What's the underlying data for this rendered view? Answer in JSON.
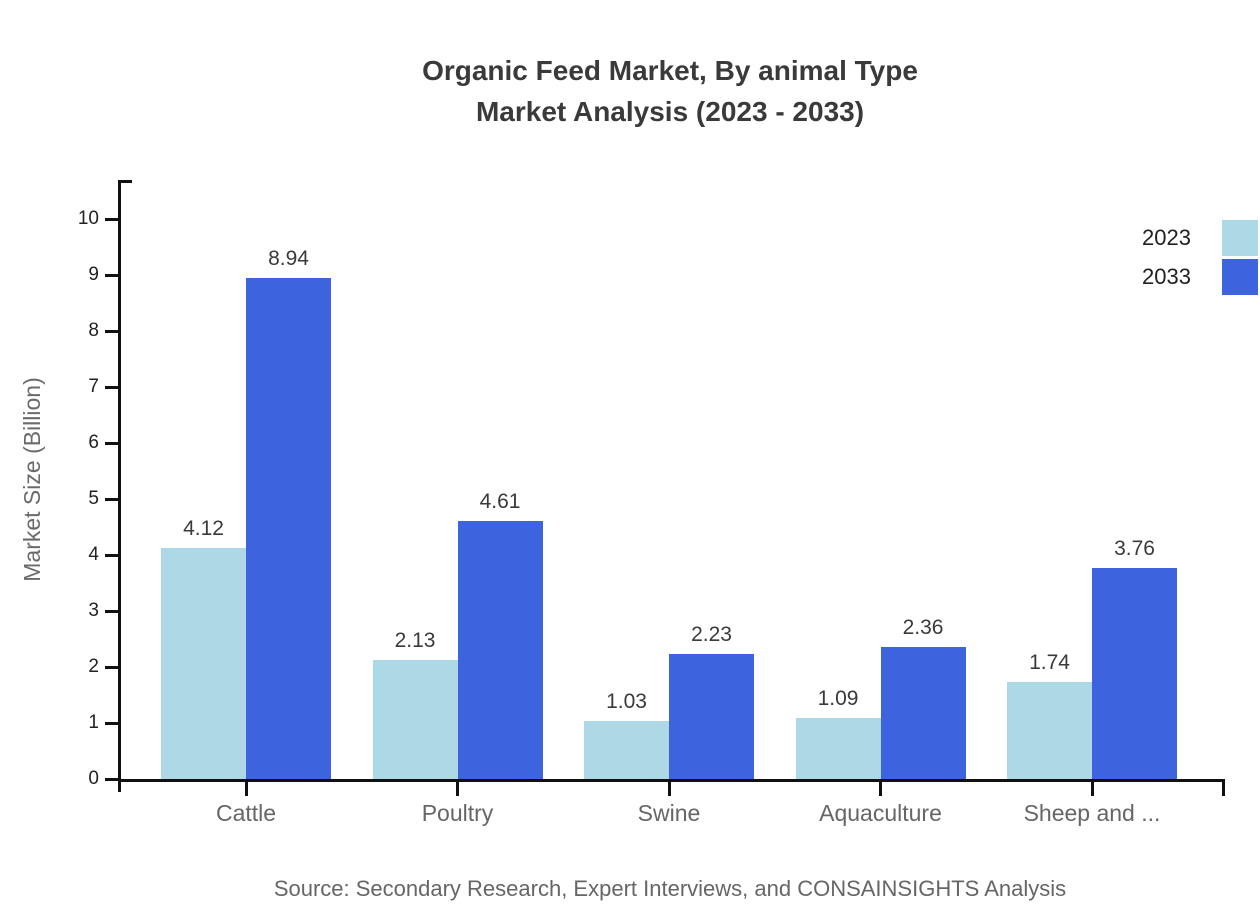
{
  "title": {
    "line1": "Organic Feed Market, By animal Type",
    "line2": "Market Analysis (2023 - 2033)"
  },
  "chart_data": {
    "type": "bar",
    "title": "Organic Feed Market, By animal Type Market Analysis (2023 - 2033)",
    "categories": [
      "Cattle",
      "Poultry",
      "Swine",
      "Aquaculture",
      "Sheep and ..."
    ],
    "series": [
      {
        "name": "2023",
        "color": "#ADD8E6",
        "values": [
          4.12,
          2.13,
          1.03,
          1.09,
          1.74
        ]
      },
      {
        "name": "2033",
        "color": "#3E63DE",
        "values": [
          8.94,
          4.61,
          2.23,
          2.36,
          3.76
        ]
      }
    ],
    "xlabel": "",
    "ylabel": "Market Size (Billion)",
    "ylim": [
      0,
      10
    ],
    "ytick_step": 1,
    "yticks": [
      0,
      1,
      2,
      3,
      4,
      5,
      6,
      7,
      8,
      9,
      10
    ],
    "grid": false,
    "legend_position": "top-right",
    "value_labels_shown": true
  },
  "source": "Source: Secondary Research, Expert Interviews, and CONSAINSIGHTS Analysis",
  "colors": {
    "bar_2023": "#ADD8E6",
    "bar_2033": "#3E63DE",
    "axis_line": "#111111",
    "title_text": "#3a3a3a",
    "value_label_text": "#3a3a3a",
    "tick_label_text": "#222222",
    "category_label_text": "#666666",
    "axis_title_text": "#6b6b6b",
    "source_text": "#666666",
    "background": "#ffffff"
  }
}
